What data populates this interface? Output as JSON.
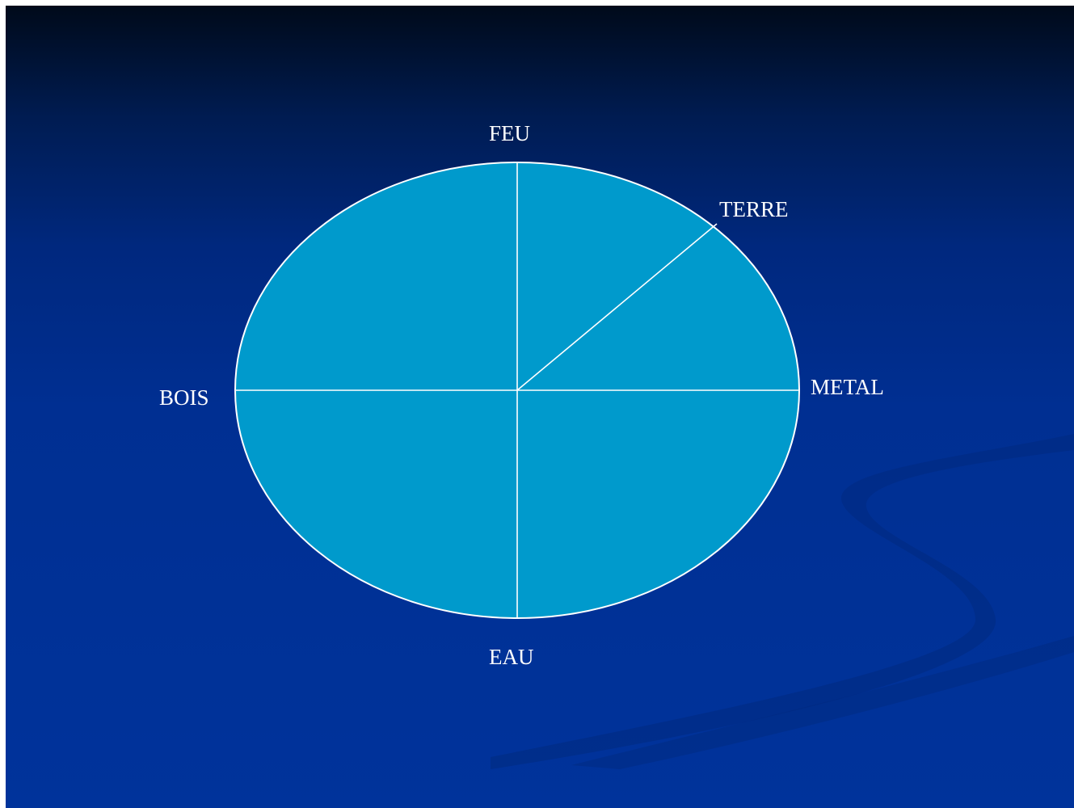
{
  "diagram": {
    "elements": {
      "fire": "FEU",
      "earth": "TERRE",
      "metal": "METAL",
      "wood": "BOIS",
      "water": "EAU"
    }
  },
  "colors": {
    "disc_fill": "#009acc",
    "line": "#ffffff",
    "text": "#ffffff",
    "background_top": "#000a1a",
    "background_bottom": "#00339b"
  }
}
